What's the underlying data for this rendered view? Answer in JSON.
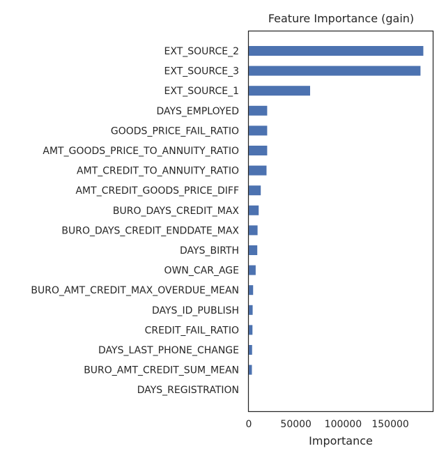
{
  "chart_data": {
    "type": "bar",
    "orientation": "horizontal",
    "title": "Feature Importance (gain)",
    "xlabel": "Importance",
    "ylabel": "",
    "xlim": [
      0,
      195000
    ],
    "xticks": [
      0,
      50000,
      100000,
      150000
    ],
    "grid": false,
    "bar_color": "#4c72b0",
    "categories": [
      "EXT_SOURCE_2",
      "EXT_SOURCE_3",
      "EXT_SOURCE_1",
      "DAYS_EMPLOYED",
      "GOODS_PRICE_FAIL_RATIO",
      "AMT_GOODS_PRICE_TO_ANNUITY_RATIO",
      "AMT_CREDIT_TO_ANNUITY_RATIO",
      "AMT_CREDIT_GOODS_PRICE_DIFF",
      "BURO_DAYS_CREDIT_MAX",
      "BURO_DAYS_CREDIT_ENDDATE_MAX",
      "DAYS_BIRTH",
      "OWN_CAR_AGE",
      "BURO_AMT_CREDIT_MAX_OVERDUE_MEAN",
      "DAYS_ID_PUBLISH",
      "CREDIT_FAIL_RATIO",
      "DAYS_LAST_PHONE_CHANGE",
      "BURO_AMT_CREDIT_SUM_MEAN",
      "DAYS_REGISTRATION"
    ],
    "values": [
      185000,
      182000,
      65000,
      19500,
      19500,
      19500,
      18800,
      12700,
      10500,
      9300,
      9000,
      7300,
      4600,
      4100,
      3900,
      3500,
      3300,
      0
    ]
  }
}
